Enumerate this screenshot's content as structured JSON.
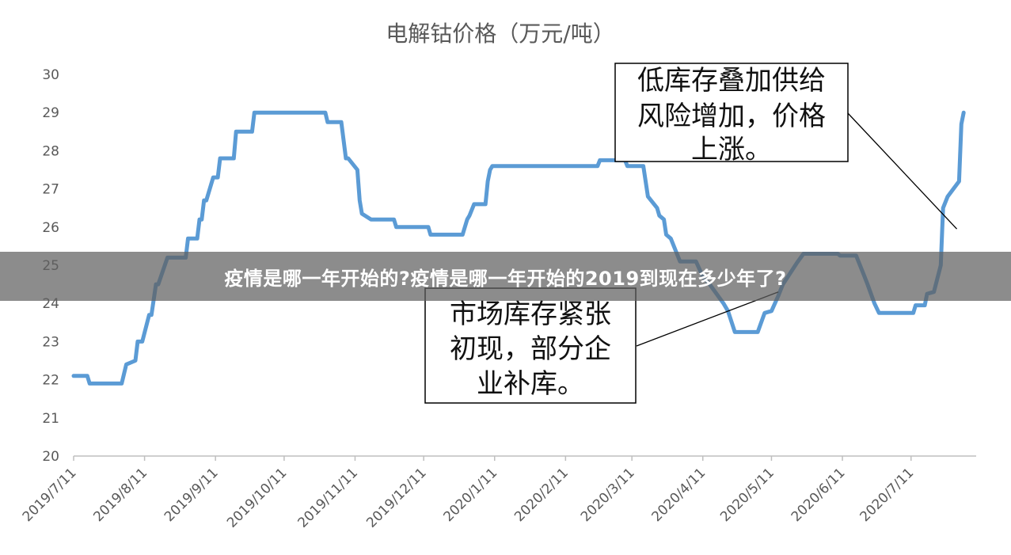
{
  "banner": {
    "text": "疫情是哪一年开始的?疫情是哪一年开始的2019到现在多少年了?"
  },
  "colors": {
    "series": "#5b9bd5",
    "axis": "#bfbfbf",
    "text": "#595959",
    "banner_bg": "#606060"
  },
  "chart_data": {
    "type": "line",
    "title": "电解钴价格（万元/吨）",
    "xlabel": "",
    "ylabel": "",
    "ylim": [
      20,
      30
    ],
    "yticks": [
      20,
      21,
      22,
      23,
      24,
      25,
      26,
      27,
      28,
      29,
      30
    ],
    "x_tick_labels": [
      "2019/7/11",
      "2019/8/11",
      "2019/9/11",
      "2019/10/11",
      "2019/11/11",
      "2019/12/11",
      "2020/1/11",
      "2020/2/11",
      "2020/3/11",
      "2020/4/11",
      "2020/5/11",
      "2020/6/11",
      "2020/7/11"
    ],
    "x_tick_dates": [
      "2019-07-11",
      "2019-08-11",
      "2019-09-11",
      "2019-10-11",
      "2019-11-11",
      "2019-12-11",
      "2020-01-11",
      "2020-02-11",
      "2020-03-11",
      "2020-04-11",
      "2020-05-11",
      "2020-06-11",
      "2020-07-11"
    ],
    "grid": false,
    "legend": "none",
    "series": [
      {
        "points": [
          [
            "2019-07-11",
            22.1
          ],
          [
            "2019-07-17",
            22.1
          ],
          [
            "2019-07-18",
            21.9
          ],
          [
            "2019-08-01",
            21.9
          ],
          [
            "2019-08-03",
            22.4
          ],
          [
            "2019-08-07",
            22.5
          ],
          [
            "2019-08-08",
            23.0
          ],
          [
            "2019-08-10",
            23.0
          ],
          [
            "2019-08-13",
            23.7
          ],
          [
            "2019-08-14",
            23.7
          ],
          [
            "2019-08-16",
            24.5
          ],
          [
            "2019-08-17",
            24.5
          ],
          [
            "2019-08-21",
            25.2
          ],
          [
            "2019-08-29",
            25.2
          ],
          [
            "2019-08-30",
            25.7
          ],
          [
            "2019-09-03",
            25.7
          ],
          [
            "2019-09-04",
            26.2
          ],
          [
            "2019-09-05",
            26.2
          ],
          [
            "2019-09-06",
            26.7
          ],
          [
            "2019-09-07",
            26.7
          ],
          [
            "2019-09-10",
            27.3
          ],
          [
            "2019-09-12",
            27.3
          ],
          [
            "2019-09-13",
            27.8
          ],
          [
            "2019-09-19",
            27.8
          ],
          [
            "2019-09-20",
            28.5
          ],
          [
            "2019-09-27",
            28.5
          ],
          [
            "2019-09-28",
            29.0
          ],
          [
            "2019-10-29",
            29.0
          ],
          [
            "2019-10-30",
            28.75
          ],
          [
            "2019-11-05",
            28.75
          ],
          [
            "2019-11-07",
            27.8
          ],
          [
            "2019-11-08",
            27.8
          ],
          [
            "2019-11-12",
            27.5
          ],
          [
            "2019-11-13",
            26.7
          ],
          [
            "2019-11-14",
            26.35
          ],
          [
            "2019-11-18",
            26.2
          ],
          [
            "2019-11-28",
            26.2
          ],
          [
            "2019-11-29",
            26.0
          ],
          [
            "2019-12-13",
            26.0
          ],
          [
            "2019-12-14",
            25.8
          ],
          [
            "2019-12-28",
            25.8
          ],
          [
            "2019-12-30",
            26.2
          ],
          [
            "2019-12-31",
            26.3
          ],
          [
            "2020-01-02",
            26.6
          ],
          [
            "2020-01-07",
            26.6
          ],
          [
            "2020-01-08",
            27.2
          ],
          [
            "2020-01-09",
            27.5
          ],
          [
            "2020-01-10",
            27.6
          ],
          [
            "2020-02-25",
            27.6
          ],
          [
            "2020-02-26",
            27.75
          ],
          [
            "2020-03-08",
            27.75
          ],
          [
            "2020-03-09",
            27.6
          ],
          [
            "2020-03-16",
            27.6
          ],
          [
            "2020-03-18",
            26.8
          ],
          [
            "2020-03-22",
            26.5
          ],
          [
            "2020-03-23",
            26.3
          ],
          [
            "2020-03-25",
            26.2
          ],
          [
            "2020-03-26",
            25.8
          ],
          [
            "2020-03-28",
            25.7
          ],
          [
            "2020-04-01",
            25.1
          ],
          [
            "2020-04-08",
            25.1
          ],
          [
            "2020-04-11",
            24.7
          ],
          [
            "2020-04-14",
            24.5
          ],
          [
            "2020-04-20",
            24.0
          ],
          [
            "2020-04-22",
            23.8
          ],
          [
            "2020-04-25",
            23.25
          ],
          [
            "2020-05-05",
            23.25
          ],
          [
            "2020-05-08",
            23.75
          ],
          [
            "2020-05-11",
            23.8
          ],
          [
            "2020-05-14",
            24.2
          ],
          [
            "2020-05-16",
            24.5
          ],
          [
            "2020-05-22",
            25.05
          ],
          [
            "2020-05-25",
            25.3
          ],
          [
            "2020-06-09",
            25.3
          ],
          [
            "2020-06-10",
            25.25
          ],
          [
            "2020-06-17",
            25.25
          ],
          [
            "2020-06-20",
            24.8
          ],
          [
            "2020-06-22",
            24.5
          ],
          [
            "2020-06-25",
            24.0
          ],
          [
            "2020-06-27",
            23.75
          ],
          [
            "2020-07-12",
            23.75
          ],
          [
            "2020-07-13",
            23.95
          ],
          [
            "2020-07-17",
            23.95
          ],
          [
            "2020-07-18",
            24.25
          ],
          [
            "2020-07-21",
            24.3
          ],
          [
            "2020-07-24",
            25.0
          ],
          [
            "2020-07-25",
            26.5
          ],
          [
            "2020-07-27",
            26.8
          ],
          [
            "2020-08-01",
            27.2
          ],
          [
            "2020-08-02",
            28.7
          ],
          [
            "2020-08-03",
            29.0
          ]
        ]
      }
    ],
    "annotations": [
      {
        "lines": [
          "低库存叠加供给",
          "风险增加，价格",
          "上涨。"
        ],
        "target": [
          "2020-07-31",
          25.95
        ]
      },
      {
        "lines": [
          "市场库存紧张",
          "初现，部分企",
          "业补库。"
        ],
        "target": [
          "2020-05-14",
          24.3
        ]
      }
    ]
  }
}
